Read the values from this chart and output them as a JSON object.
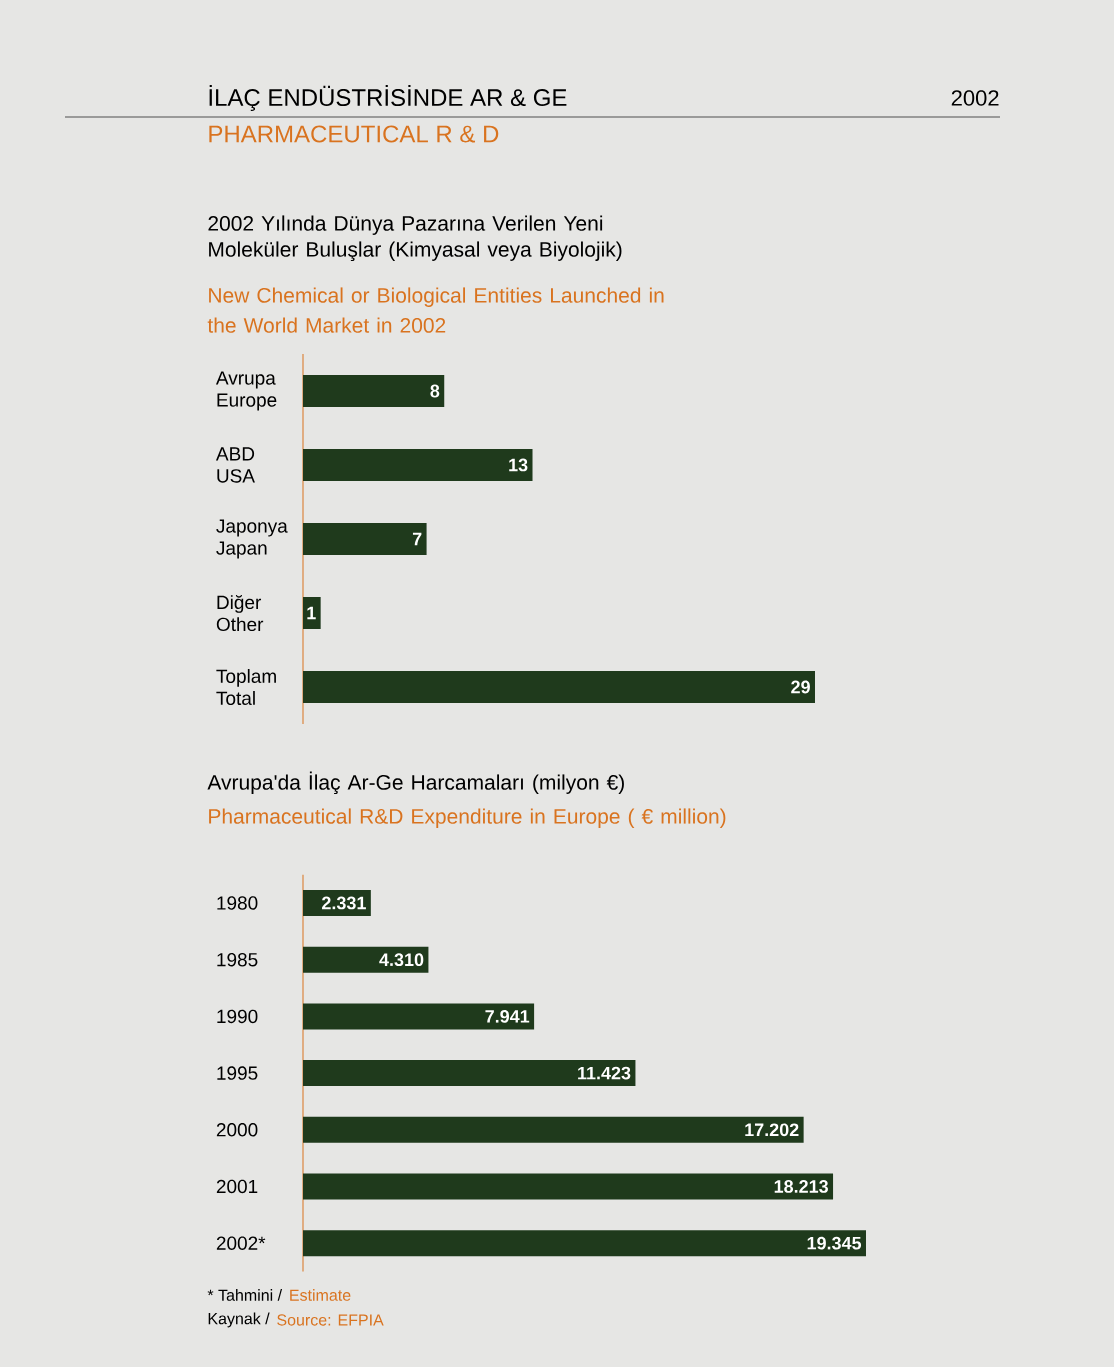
{
  "chart_data": [
    {
      "type": "bar",
      "orientation": "horizontal",
      "title": "2002 Yılında Dünya Pazarına Verilen Yeni Moleküler Buluşlar (Kimyasal veya Biyolojik)",
      "subtitle": "New Chemical or Biological Entities Launched in the World Market in 2002",
      "categories": [
        "Avrupa Europe",
        "ABD USA",
        "Japonya Japan",
        "Diğer Other",
        "Toplam Total"
      ],
      "values": [
        8,
        13,
        7,
        1,
        29
      ],
      "value_labels": [
        "8",
        "13",
        "7",
        "1",
        "29"
      ],
      "color": "#1f3a1c",
      "annotations": [
        "İLAÇ ENDÜSTRİSİNDE AR & GE",
        "2002",
        "PHARMACEUTICAL R & D"
      ]
    },
    {
      "type": "bar",
      "orientation": "horizontal",
      "title": "Avrupa'da İlaç Ar-Ge Harcamaları (milyon €)",
      "subtitle": "Pharmaceutical R&D Expenditure in Europe ( € million)",
      "categories": [
        "1980",
        "1985",
        "1990",
        "1995",
        "2000",
        "2001",
        "2002*"
      ],
      "values": [
        2331,
        4310,
        7941,
        11423,
        17202,
        18213,
        19345
      ],
      "value_labels": [
        "2.331",
        "4.310",
        "7.941",
        "11.423",
        "17.202",
        "18.213",
        "19.345"
      ],
      "color": "#1f3a1c",
      "annotations": [
        "* Tahmini /",
        "Estimate",
        "Kaynak /",
        "Source: EFPIA"
      ]
    }
  ]
}
